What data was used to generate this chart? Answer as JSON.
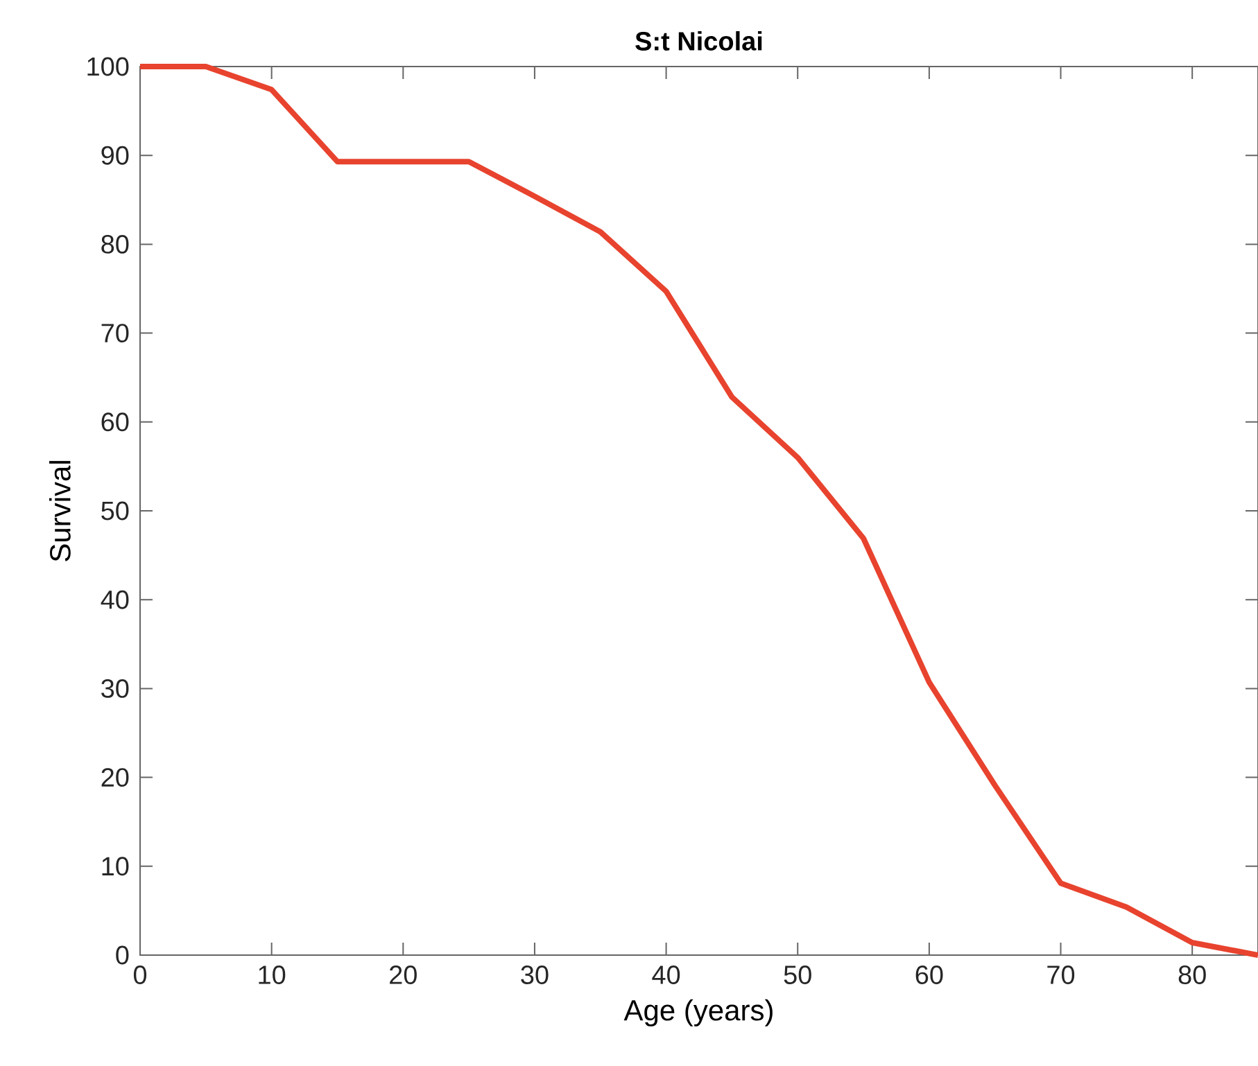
{
  "chart_data": {
    "type": "line",
    "title": "S:t Nicolai",
    "xlabel": "Age (years)",
    "ylabel": "Survival",
    "x": [
      0,
      5,
      10,
      15,
      20,
      25,
      30,
      35,
      40,
      45,
      50,
      55,
      60,
      65,
      70,
      75,
      80,
      85
    ],
    "series": [
      {
        "color": "#e8432e",
        "values": [
          100,
          100,
          97.4,
          89.3,
          89.3,
          89.3,
          85.4,
          81.4,
          74.7,
          62.8,
          56.0,
          46.9,
          30.7,
          19.1,
          8.1,
          5.4,
          1.4,
          0
        ]
      }
    ],
    "xlim": [
      0,
      85
    ],
    "ylim": [
      0,
      100
    ],
    "xticks": [
      0,
      10,
      20,
      30,
      40,
      50,
      60,
      70,
      80
    ],
    "yticks": [
      0,
      10,
      20,
      30,
      40,
      50,
      60,
      70,
      80,
      90,
      100
    ],
    "marker": "none",
    "line_style": "solid"
  }
}
